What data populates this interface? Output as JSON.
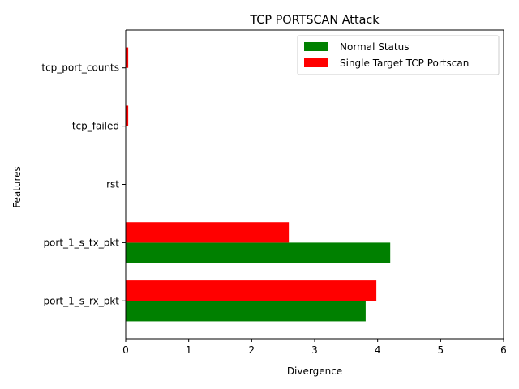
{
  "chart_data": {
    "type": "bar",
    "orientation": "horizontal",
    "title": "TCP PORTSCAN Attack",
    "xlabel": "Divergence",
    "ylabel": "Features",
    "xlim": [
      0,
      6
    ],
    "xticks": [
      "0",
      "1",
      "2",
      "3",
      "4",
      "5",
      "6"
    ],
    "categories": [
      "port_1_s_rx_pkt",
      "port_1_s_tx_pkt",
      "rst",
      "tcp_failed",
      "tcp_port_counts"
    ],
    "series": [
      {
        "name": "Normal Status",
        "color": "#008000",
        "values": [
          3.81,
          4.2,
          0.0,
          0.0,
          0.0
        ]
      },
      {
        "name": "Single Target TCP Portscan",
        "color": "#ff0000",
        "values": [
          3.98,
          2.59,
          0.0,
          0.04,
          0.04
        ]
      }
    ],
    "legend": {
      "position": "top-right"
    },
    "grid": false
  }
}
